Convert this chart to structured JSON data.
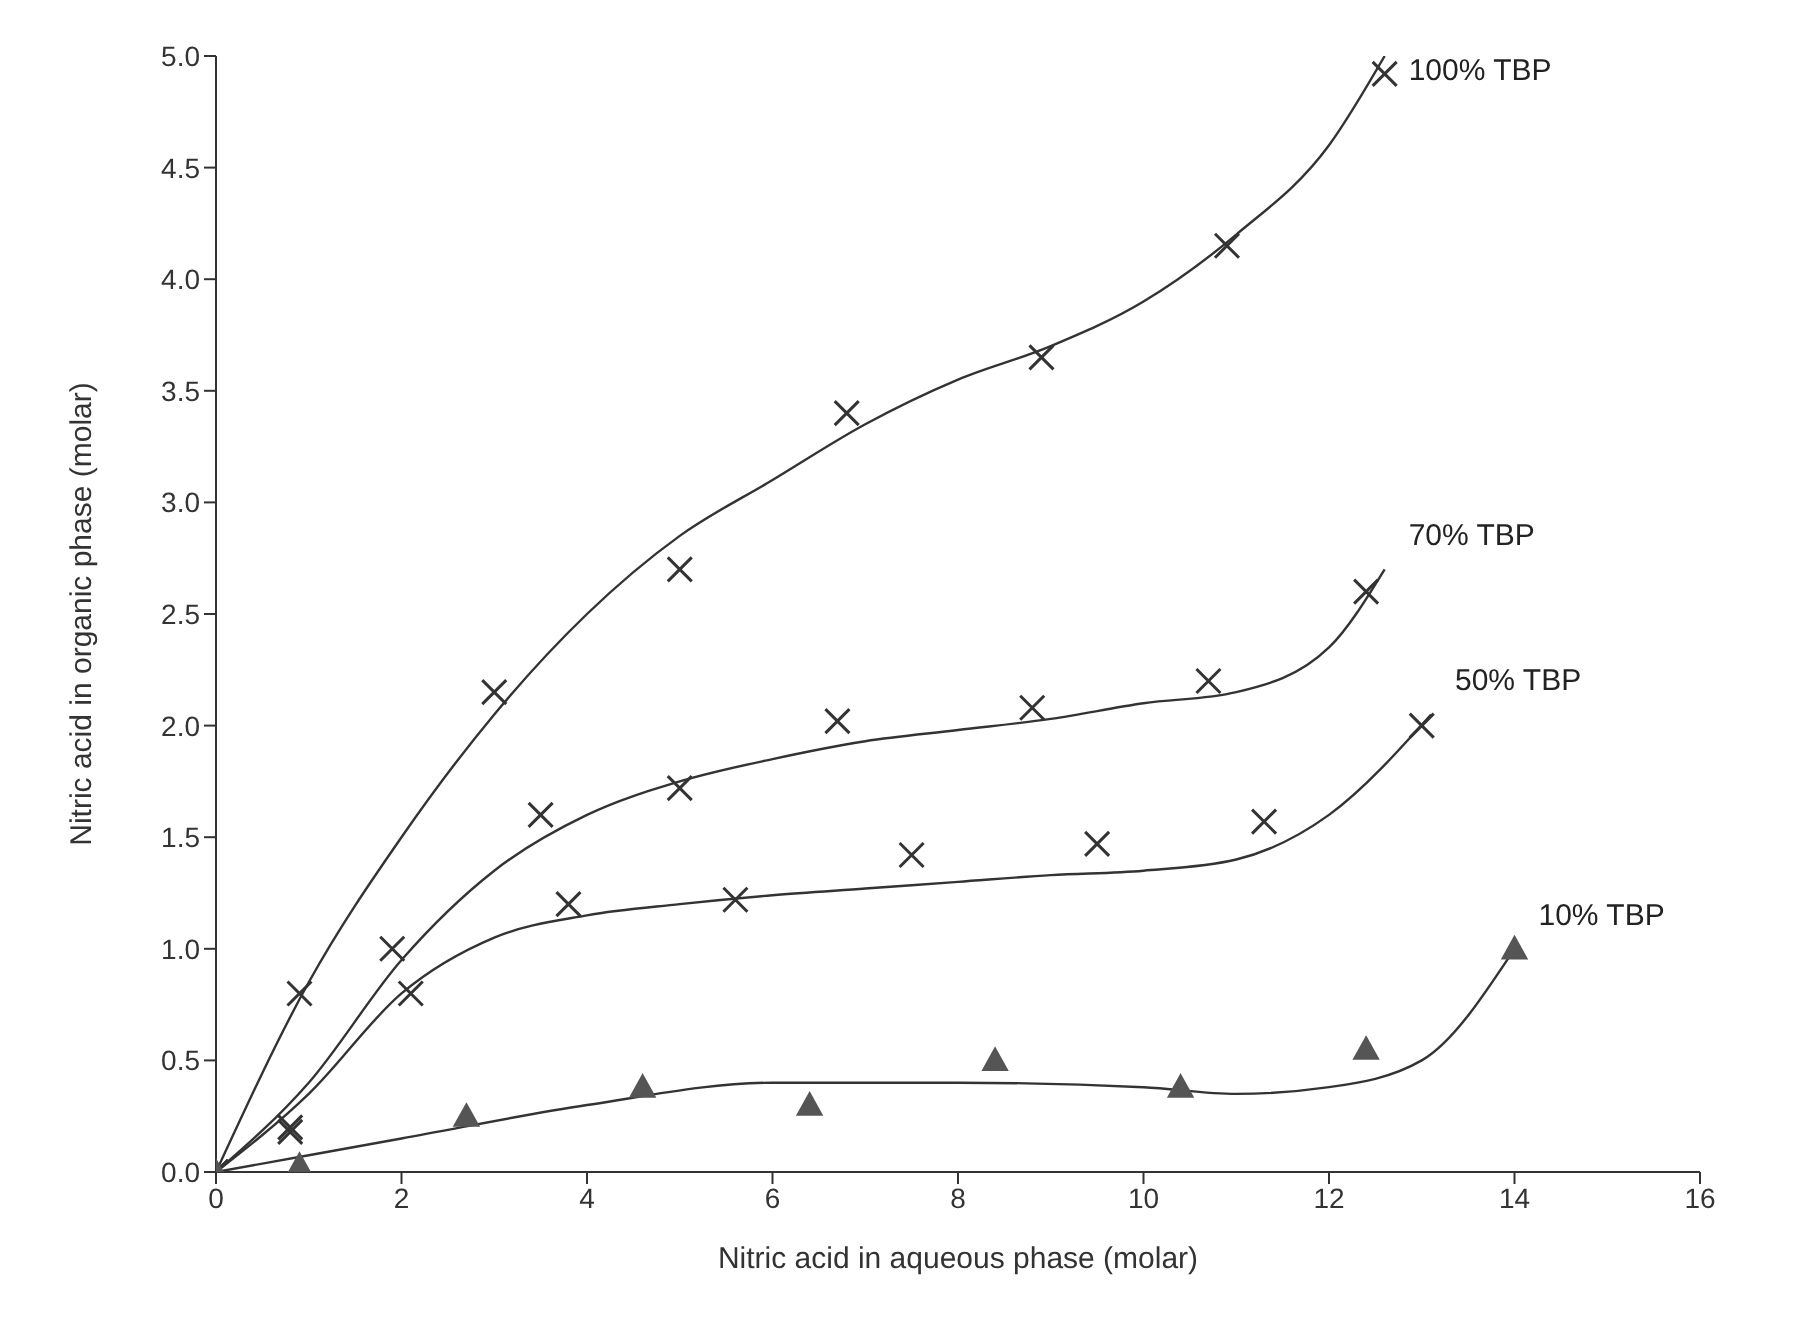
{
  "chart_data": {
    "type": "scatter",
    "xlabel": "Nitric acid in aqueous phase (molar)",
    "ylabel": "Nitric acid in organic phase (molar)",
    "xlim": [
      0,
      16
    ],
    "ylim": [
      0,
      5
    ],
    "xticks": [
      0,
      2,
      4,
      6,
      8,
      10,
      12,
      14,
      16
    ],
    "yticks": [
      {
        "value": 0,
        "label": "0.0"
      },
      {
        "value": 0.5,
        "label": "0.5"
      },
      {
        "value": 1,
        "label": "1.0"
      },
      {
        "value": 1.5,
        "label": "1.5"
      },
      {
        "value": 2,
        "label": "2.0"
      },
      {
        "value": 2.5,
        "label": "2.5"
      },
      {
        "value": 3,
        "label": "3.0"
      },
      {
        "value": 3.5,
        "label": "3.5"
      },
      {
        "value": 4,
        "label": "4.0"
      },
      {
        "value": 4.5,
        "label": "4.5"
      },
      {
        "value": 5,
        "label": "5.0"
      }
    ],
    "grid": false,
    "legend": false,
    "series": [
      {
        "marker": "cross",
        "color": "#333333",
        "x": [
          0,
          0.9,
          3,
          5,
          6.8,
          8.9,
          10.9,
          12.6
        ],
        "values": [
          0,
          0.8,
          2.15,
          2.7,
          3.4,
          3.65,
          4.15,
          4.92
        ]
      },
      {
        "marker": "cross",
        "color": "#333333",
        "x": [
          0,
          0.8,
          1.9,
          3.5,
          5,
          6.7,
          8.8,
          10.7,
          12.4
        ],
        "values": [
          0,
          0.2,
          1.0,
          1.6,
          1.72,
          2.02,
          2.08,
          2.2,
          2.6
        ]
      },
      {
        "marker": "cross",
        "color": "#333333",
        "x": [
          0,
          0.8,
          2.1,
          3.8,
          5.6,
          7.5,
          9.5,
          11.3,
          13
        ],
        "values": [
          0,
          0.18,
          0.8,
          1.2,
          1.22,
          1.42,
          1.47,
          1.57,
          2.0
        ]
      },
      {
        "marker": "triangle",
        "color": "#555555",
        "x": [
          0,
          0.9,
          2.7,
          4.6,
          6.4,
          8.4,
          10.4,
          12.4,
          14
        ],
        "values": [
          0,
          0.03,
          0.25,
          0.38,
          0.3,
          0.5,
          0.38,
          0.55,
          1.0
        ]
      },
      {
        "type": "line",
        "name": "100% TBP",
        "marker": "none",
        "color": "#333333",
        "x": [
          0,
          1,
          2,
          3,
          4,
          5,
          6,
          7,
          8,
          9,
          10,
          11,
          12,
          12.6
        ],
        "values": [
          0,
          0.85,
          1.5,
          2.05,
          2.5,
          2.85,
          3.1,
          3.35,
          3.55,
          3.7,
          3.9,
          4.2,
          4.6,
          5.0
        ]
      },
      {
        "type": "line",
        "name": "70% TBP",
        "marker": "none",
        "color": "#333333",
        "x": [
          0,
          1,
          2,
          3,
          4,
          5,
          6,
          7,
          8,
          9,
          10,
          11,
          12,
          12.6
        ],
        "values": [
          0,
          0.4,
          0.95,
          1.35,
          1.6,
          1.75,
          1.85,
          1.93,
          1.98,
          2.03,
          2.1,
          2.15,
          2.35,
          2.7
        ]
      },
      {
        "type": "line",
        "name": "50% TBP",
        "marker": "none",
        "color": "#333333",
        "x": [
          0,
          1,
          2,
          3,
          4,
          5,
          6,
          7,
          8,
          9,
          10,
          11,
          12,
          13.1
        ],
        "values": [
          0,
          0.35,
          0.8,
          1.05,
          1.15,
          1.2,
          1.24,
          1.27,
          1.3,
          1.33,
          1.35,
          1.4,
          1.6,
          2.05
        ]
      },
      {
        "type": "line",
        "name": "10% TBP",
        "marker": "none",
        "color": "#333333",
        "x": [
          0,
          2,
          4,
          6,
          8,
          10,
          11,
          12,
          13,
          14
        ],
        "values": [
          0,
          0.15,
          0.3,
          0.4,
          0.4,
          0.38,
          0.35,
          0.38,
          0.5,
          1.0
        ]
      }
    ]
  }
}
